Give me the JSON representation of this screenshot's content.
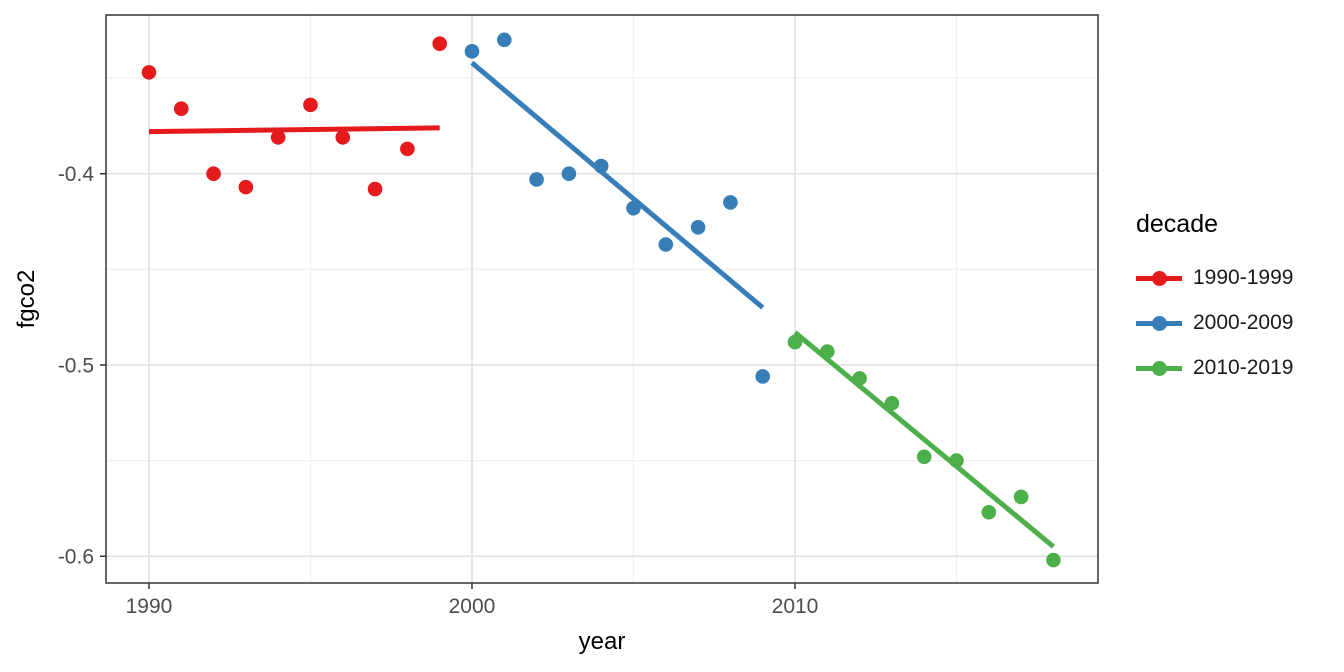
{
  "legend": {
    "title": "decade",
    "position": "right",
    "entries": [
      {
        "label": "1990-1999",
        "color": "#E41A1C"
      },
      {
        "label": "2000-2009",
        "color": "#377EB8"
      },
      {
        "label": "2010-2019",
        "color": "#4DAF4A"
      }
    ]
  },
  "chart_data": {
    "type": "scatter",
    "title": "",
    "xlabel": "year",
    "ylabel": "fgco2",
    "xlim": [
      1988.67,
      2019.38
    ],
    "ylim": [
      -0.614,
      -0.317
    ],
    "x_ticks": [
      1990,
      2000,
      2010
    ],
    "x_tick_labels": [
      "1990",
      "2000",
      "2010"
    ],
    "x_minor_ticks": [
      1995,
      2005,
      2015
    ],
    "y_ticks": [
      -0.4,
      -0.5,
      -0.6
    ],
    "y_tick_labels": [
      "-0.4",
      "-0.5",
      "-0.6"
    ],
    "y_minor_ticks": [
      -0.35,
      -0.45,
      -0.55
    ],
    "grid": true,
    "panel_border": true,
    "background": "#FFFFFF",
    "grid_major_color": "#E3E3E3",
    "grid_minor_color": "#F0F0F0",
    "border_color": "#333333",
    "tick_text_color": "#4D4D4D",
    "legend_position": "right",
    "series": [
      {
        "name": "1990-1999",
        "color": "#E41A1C",
        "x": [
          1990,
          1991,
          1992,
          1993,
          1994,
          1995,
          1996,
          1997,
          1998,
          1999
        ],
        "y": [
          -0.347,
          -0.366,
          -0.4,
          -0.407,
          -0.381,
          -0.364,
          -0.381,
          -0.408,
          -0.387,
          -0.332
        ],
        "trend": {
          "x1": 1990,
          "y1": -0.378,
          "x2": 1999,
          "y2": -0.376
        }
      },
      {
        "name": "2000-2009",
        "color": "#377EB8",
        "x": [
          2000,
          2001,
          2002,
          2003,
          2004,
          2005,
          2006,
          2007,
          2008,
          2009
        ],
        "y": [
          -0.336,
          -0.33,
          -0.403,
          -0.4,
          -0.396,
          -0.418,
          -0.437,
          -0.428,
          -0.415,
          -0.506
        ],
        "trend": {
          "x1": 2000,
          "y1": -0.342,
          "x2": 2009,
          "y2": -0.47
        }
      },
      {
        "name": "2010-2019",
        "color": "#4DAF4A",
        "x": [
          2010,
          2011,
          2012,
          2013,
          2014,
          2015,
          2016,
          2017,
          2018
        ],
        "y": [
          -0.488,
          -0.493,
          -0.507,
          -0.52,
          -0.548,
          -0.55,
          -0.577,
          -0.569,
          -0.602
        ],
        "trend": {
          "x1": 2010,
          "y1": -0.483,
          "x2": 2018,
          "y2": -0.595
        }
      }
    ]
  }
}
